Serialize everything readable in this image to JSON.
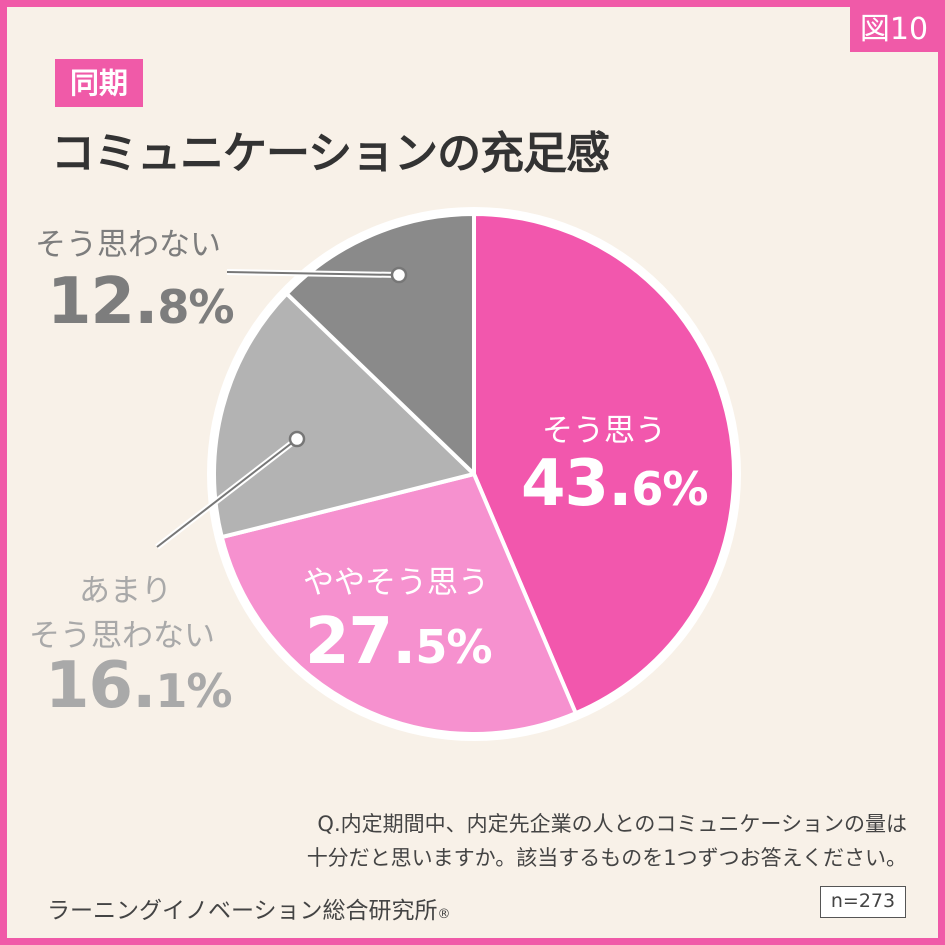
{
  "figure_tag": "図10",
  "section_tag": "同期",
  "title": "コミュニケーションの充足感",
  "colors": {
    "frame": "#f05aa8",
    "background": "#f8f1e8",
    "slice_agree": "#f257ad",
    "slice_somewhat_agree": "#f691cf",
    "slice_somewhat_disagree": "#b3b3b3",
    "slice_disagree": "#8a8a8a"
  },
  "chart_data": {
    "type": "pie",
    "slices": [
      {
        "label": "そう思う",
        "value": 43.6,
        "display_num": "43.",
        "display_dec": "6%",
        "color": "#f257ad",
        "label_color": "#ffffff"
      },
      {
        "label": "ややそう思う",
        "value": 27.5,
        "display_num": "27.",
        "display_dec": "5%",
        "color": "#f691cf",
        "label_color": "#ffffff"
      },
      {
        "label": "あまりそう思わない",
        "label_line1": "あまり",
        "label_line2": "そう思わない",
        "value": 16.1,
        "display_num": "16.",
        "display_dec": "1%",
        "color": "#b3b3b3",
        "label_color": "#a9a9a9"
      },
      {
        "label": "そう思わない",
        "value": 12.8,
        "display_num": "12.",
        "display_dec": "8%",
        "color": "#8a8a8a",
        "label_color": "#7d7d7d"
      }
    ]
  },
  "question_line1": "Q.内定期間中、内定先企業の人とのコミュニケーションの量は",
  "question_line2": "十分だと思いますか。該当するものを1つずつお答えください。",
  "source": "ラーニングイノベーション総合研究所",
  "source_mark": "®",
  "n_label": "n=273"
}
